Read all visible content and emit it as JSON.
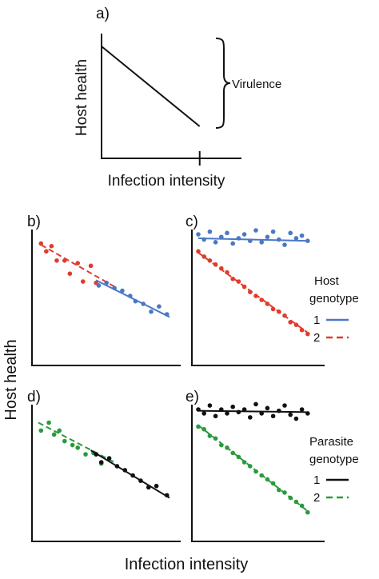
{
  "figure": {
    "shared_ylabel": "Host health",
    "shared_xlabel": "Infection intensity"
  },
  "chart_data": [
    {
      "panel": "a)",
      "type": "line",
      "xlabel": "Infection intensity",
      "ylabel": "Host health",
      "annotation": "Virulence",
      "series": [
        {
          "name": "",
          "color": "#111111",
          "dashed": false,
          "x": [
            0,
            1
          ],
          "y": [
            1,
            0
          ]
        }
      ],
      "xlim": [
        0,
        1.1
      ],
      "ylim": [
        -0.4,
        1.1
      ]
    },
    {
      "panel": "b)",
      "type": "scatter",
      "xlim": [
        0,
        1
      ],
      "ylim": [
        0,
        1
      ],
      "series": [
        {
          "name": "",
          "color": "#e03b2c",
          "dashed": true,
          "line": [
            [
              0.02,
              0.92
            ],
            [
              0.6,
              0.59
            ]
          ],
          "x": [
            0.02,
            0.06,
            0.1,
            0.14,
            0.2,
            0.24,
            0.3,
            0.34,
            0.4,
            0.44
          ],
          "y": [
            0.93,
            0.87,
            0.91,
            0.8,
            0.8,
            0.7,
            0.78,
            0.64,
            0.76,
            0.63
          ]
        },
        {
          "name": "",
          "color": "#4a78c4",
          "dashed": false,
          "line": [
            [
              0.44,
              0.65
            ],
            [
              1.0,
              0.37
            ]
          ],
          "x": [
            0.46,
            0.52,
            0.58,
            0.64,
            0.7,
            0.74,
            0.8,
            0.86,
            0.92,
            0.98
          ],
          "y": [
            0.61,
            0.63,
            0.59,
            0.57,
            0.53,
            0.49,
            0.47,
            0.41,
            0.45,
            0.39
          ]
        }
      ]
    },
    {
      "panel": "c)",
      "type": "scatter",
      "xlim": [
        0,
        1
      ],
      "ylim": [
        0,
        1
      ],
      "legend_title": "Host genotype",
      "legend_labels": [
        "1",
        "2"
      ],
      "series": [
        {
          "name": "1",
          "color": "#4a78c4",
          "dashed": false,
          "line": [
            [
              0.0,
              0.97
            ],
            [
              0.95,
              0.95
            ]
          ],
          "x": [
            0.0,
            0.05,
            0.1,
            0.15,
            0.2,
            0.25,
            0.3,
            0.35,
            0.4,
            0.45,
            0.5,
            0.55,
            0.6,
            0.65,
            0.7,
            0.75,
            0.8,
            0.85,
            0.9,
            0.95
          ],
          "y": [
            1.0,
            0.96,
            1.02,
            0.94,
            0.98,
            1.01,
            0.93,
            0.97,
            1.0,
            0.95,
            1.03,
            0.94,
            0.98,
            1.02,
            0.96,
            0.92,
            1.01,
            0.97,
            0.99,
            0.95
          ]
        },
        {
          "name": "2",
          "color": "#e03b2c",
          "dashed": true,
          "line": [
            [
              0.0,
              0.86
            ],
            [
              0.95,
              0.25
            ]
          ],
          "x": [
            0.0,
            0.05,
            0.1,
            0.15,
            0.2,
            0.25,
            0.3,
            0.35,
            0.4,
            0.45,
            0.5,
            0.55,
            0.6,
            0.65,
            0.7,
            0.75,
            0.8,
            0.85,
            0.9,
            0.95
          ],
          "y": [
            0.87,
            0.83,
            0.8,
            0.77,
            0.74,
            0.71,
            0.66,
            0.64,
            0.6,
            0.56,
            0.53,
            0.5,
            0.47,
            0.43,
            0.41,
            0.38,
            0.33,
            0.31,
            0.27,
            0.24
          ]
        }
      ]
    },
    {
      "panel": "d)",
      "type": "scatter",
      "xlim": [
        0,
        1
      ],
      "ylim": [
        0,
        1
      ],
      "series": [
        {
          "name": "",
          "color": "#2a9a3c",
          "dashed": true,
          "line": [
            [
              0.0,
              0.9
            ],
            [
              0.58,
              0.6
            ]
          ],
          "x": [
            0.02,
            0.08,
            0.12,
            0.16,
            0.2,
            0.26,
            0.3,
            0.36,
            0.42,
            0.48
          ],
          "y": [
            0.84,
            0.9,
            0.81,
            0.84,
            0.76,
            0.73,
            0.71,
            0.66,
            0.67,
            0.59
          ]
        },
        {
          "name": "",
          "color": "#111111",
          "dashed": false,
          "line": [
            [
              0.4,
              0.69
            ],
            [
              1.0,
              0.33
            ]
          ],
          "x": [
            0.44,
            0.48,
            0.54,
            0.6,
            0.66,
            0.72,
            0.78,
            0.84,
            0.9,
            0.98
          ],
          "y": [
            0.66,
            0.6,
            0.63,
            0.57,
            0.54,
            0.5,
            0.46,
            0.41,
            0.42,
            0.35
          ]
        }
      ]
    },
    {
      "panel": "e)",
      "type": "scatter",
      "xlim": [
        0,
        1
      ],
      "ylim": [
        0,
        1
      ],
      "legend_title": "Parasite genotype",
      "legend_labels": [
        "1",
        "2"
      ],
      "series": [
        {
          "name": "1",
          "color": "#111111",
          "dashed": false,
          "line": [
            [
              0.0,
              0.99
            ],
            [
              0.95,
              0.98
            ]
          ],
          "x": [
            0.0,
            0.05,
            0.1,
            0.15,
            0.2,
            0.25,
            0.3,
            0.35,
            0.4,
            0.45,
            0.5,
            0.55,
            0.6,
            0.65,
            0.7,
            0.75,
            0.8,
            0.85,
            0.9,
            0.95
          ],
          "y": [
            1.0,
            0.97,
            1.03,
            0.95,
            1.0,
            0.97,
            1.02,
            0.98,
            1.0,
            0.94,
            1.04,
            0.97,
            1.01,
            0.95,
            0.99,
            1.03,
            0.96,
            0.93,
            1.0,
            0.97
          ]
        },
        {
          "name": "2",
          "color": "#2a9a3c",
          "dashed": true,
          "line": [
            [
              0.0,
              0.88
            ],
            [
              0.95,
              0.23
            ]
          ],
          "x": [
            0.0,
            0.05,
            0.1,
            0.15,
            0.2,
            0.25,
            0.3,
            0.35,
            0.4,
            0.45,
            0.5,
            0.55,
            0.6,
            0.65,
            0.7,
            0.75,
            0.8,
            0.85,
            0.9,
            0.95
          ],
          "y": [
            0.87,
            0.85,
            0.8,
            0.78,
            0.73,
            0.71,
            0.67,
            0.64,
            0.6,
            0.57,
            0.53,
            0.5,
            0.47,
            0.44,
            0.39,
            0.37,
            0.33,
            0.3,
            0.27,
            0.22
          ]
        }
      ]
    }
  ]
}
